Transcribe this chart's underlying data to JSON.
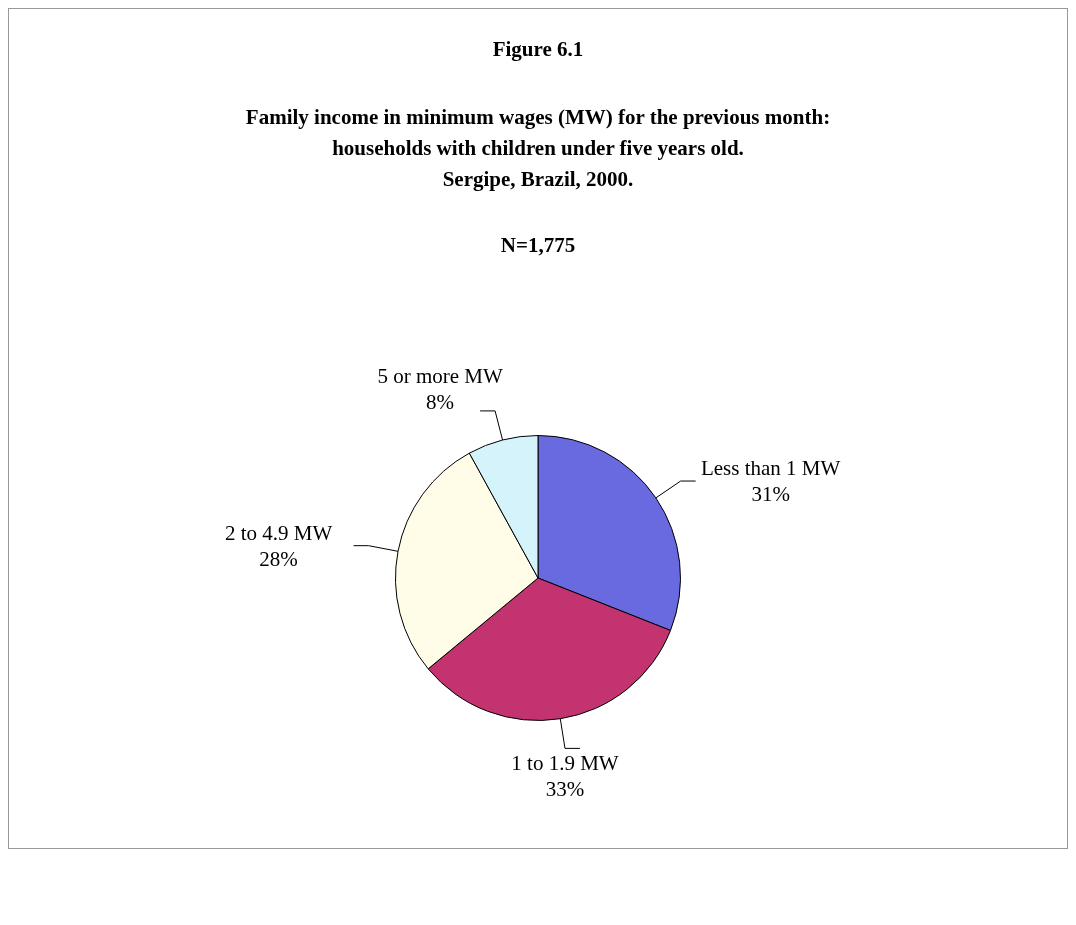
{
  "chart_data": {
    "type": "pie",
    "title": "Figure 6.1",
    "subtitle": "Family income in minimum wages (MW) for the previous month:\nhouseholds with children under five years old.\nSergipe, Brazil, 2000.",
    "annotations": [
      "N=1,775"
    ],
    "categories": [
      "Less than 1 MW",
      "1 to 1.9 MW",
      "2 to 4.9 MW",
      "5 or more MW"
    ],
    "values": [
      31,
      33,
      28,
      8
    ],
    "colors": [
      "#6a6ae0",
      "#c2336f",
      "#fffde8",
      "#d4f3fa"
    ],
    "value_labels": [
      "31%",
      "33%",
      "28%",
      "8%"
    ],
    "legend": false
  }
}
